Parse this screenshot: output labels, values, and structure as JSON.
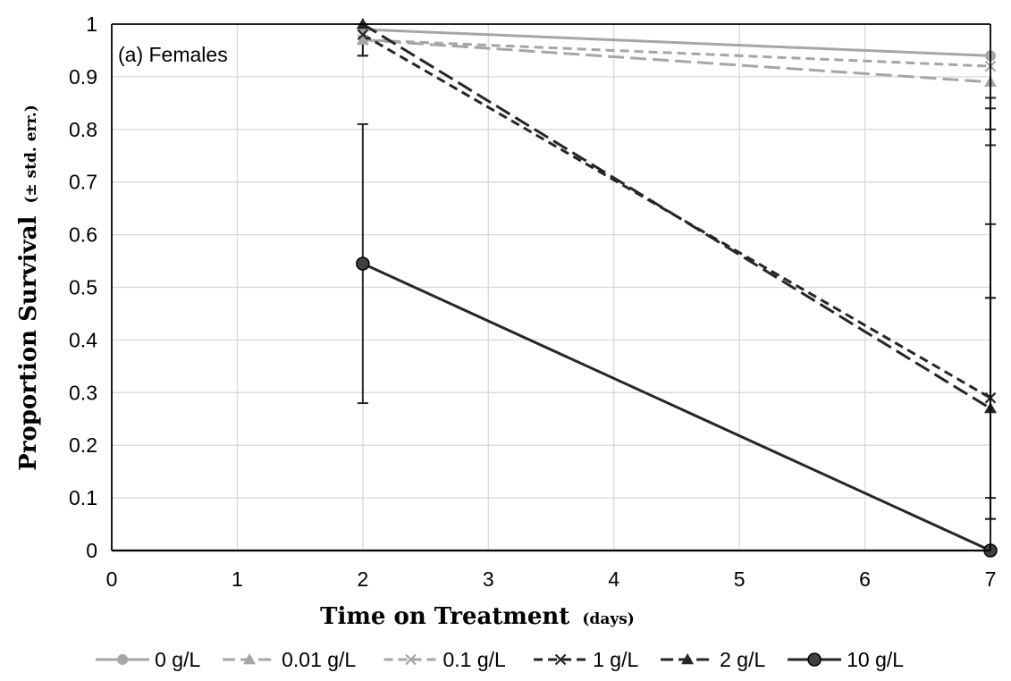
{
  "chart_data": {
    "type": "line",
    "annotation": "(a) Females",
    "xlabel": "Time on Treatment",
    "xlabel_units": "(days)",
    "ylabel": "Proportion Survival",
    "ylabel_units": "(± std. err.)",
    "xlim": [
      0,
      7
    ],
    "ylim": [
      0,
      1
    ],
    "x_ticks": [
      "0",
      "1",
      "2",
      "3",
      "4",
      "5",
      "6",
      "7"
    ],
    "y_ticks": [
      "0",
      "0.1",
      "0.2",
      "0.3",
      "0.4",
      "0.5",
      "0.6",
      "0.7",
      "0.8",
      "0.9",
      "1"
    ],
    "grid": true,
    "legend_position": "bottom",
    "x": [
      2,
      7
    ],
    "series": [
      {
        "name": "0 g/L",
        "values": [
          0.99,
          0.94
        ],
        "err": [
          0.0,
          0.0
        ],
        "color": "#a6a6a6",
        "dash": "solid",
        "marker": "circle"
      },
      {
        "name": "0.01 g/L",
        "values": [
          0.97,
          0.89
        ],
        "err": [
          0.0,
          0.0
        ],
        "color": "#a6a6a6",
        "dash": "longdash",
        "marker": "triangle"
      },
      {
        "name": "0.1 g/L",
        "values": [
          0.97,
          0.92
        ],
        "err": [
          0.0,
          0.0
        ],
        "color": "#a6a6a6",
        "dash": "dash",
        "marker": "x"
      },
      {
        "name": "1 g/L",
        "values": [
          0.98,
          0.29
        ],
        "err": [
          0.04,
          0.19
        ],
        "color": "#262626",
        "dash": "dash",
        "marker": "x"
      },
      {
        "name": "2 g/L",
        "values": [
          1.0,
          0.27
        ],
        "err": [
          0.06,
          0.21
        ],
        "color": "#262626",
        "dash": "longdash",
        "marker": "triangle"
      },
      {
        "name": "10 g/L",
        "values": [
          0.545,
          0.0
        ],
        "err": [
          0.265,
          0.0
        ],
        "color": "#262626",
        "dash": "solid",
        "marker": "bigcircle"
      }
    ],
    "extra_errorbars": [
      {
        "x": 7,
        "low": 0.77,
        "high": 0.84
      },
      {
        "x": 7,
        "low": 0.8,
        "high": 0.86
      },
      {
        "x": 7,
        "low": 0.06,
        "high": 0.62
      }
    ]
  }
}
